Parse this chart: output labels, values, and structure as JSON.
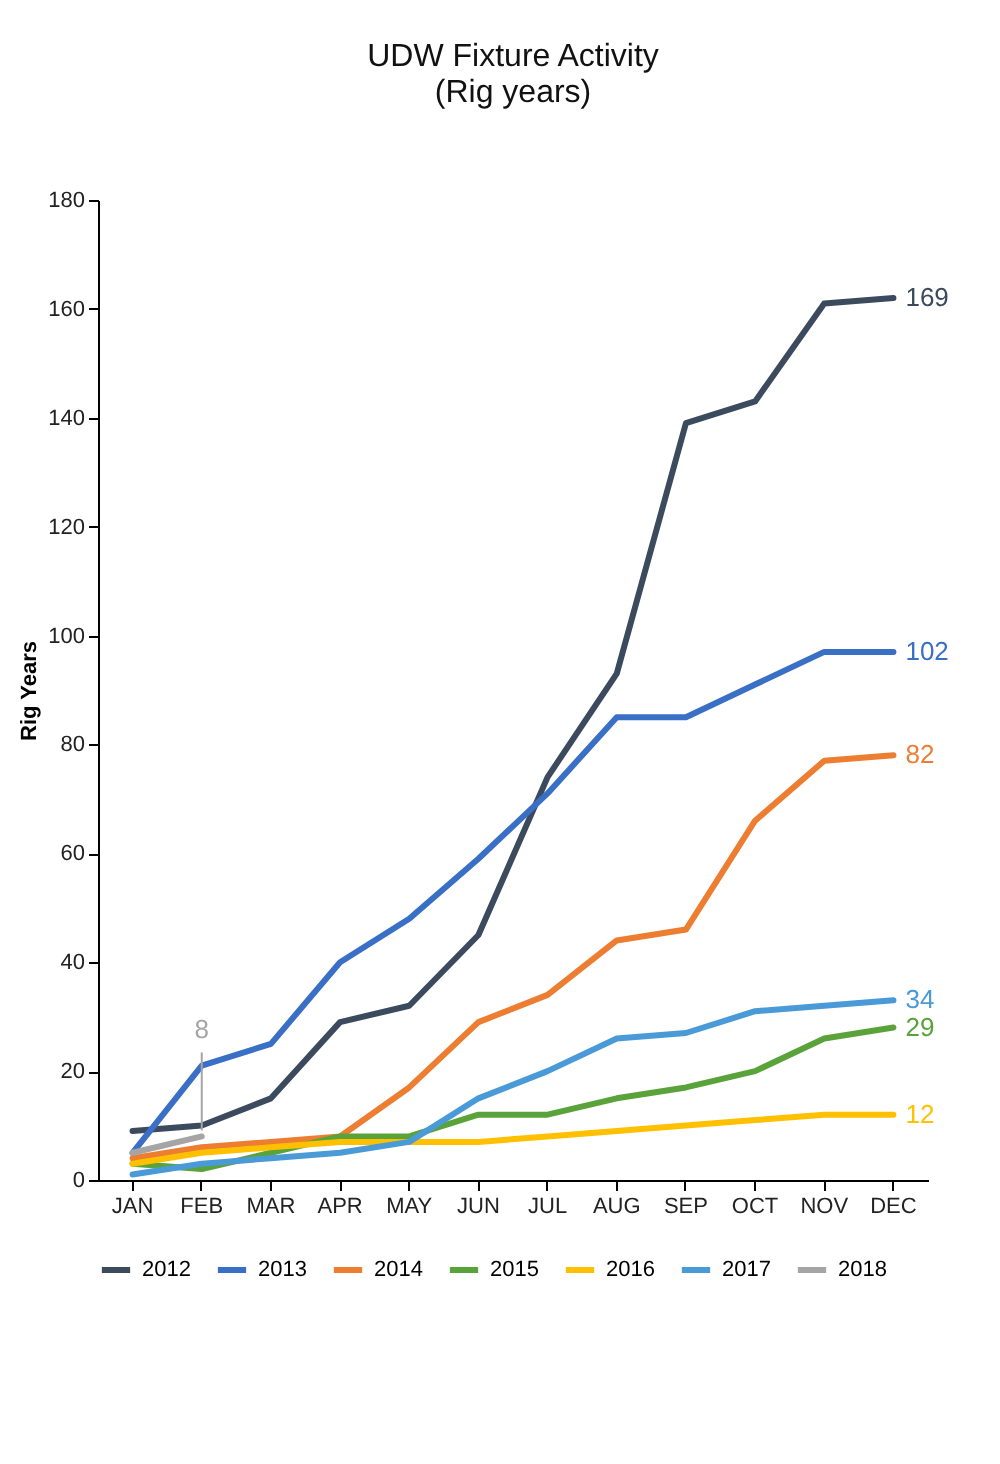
{
  "chart_data": {
    "type": "line",
    "title": [
      "UDW Fixture Activity",
      "(Rig years)"
    ],
    "ylabel": "Rig Years",
    "categories": [
      "JAN",
      "FEB",
      "MAR",
      "APR",
      "MAY",
      "JUN",
      "JUL",
      "AUG",
      "SEP",
      "OCT",
      "NOV",
      "DEC"
    ],
    "series": [
      {
        "name": "2012",
        "color": "#3c4a5e",
        "values": [
          9,
          10,
          15,
          29,
          32,
          45,
          74,
          93,
          139,
          143,
          161,
          162
        ]
      },
      {
        "name": "2013",
        "color": "#3a6fc6",
        "values": [
          5,
          21,
          25,
          40,
          48,
          59,
          71,
          85,
          85,
          91,
          97,
          97
        ]
      },
      {
        "name": "2014",
        "color": "#ed7d31",
        "values": [
          4,
          6,
          7,
          8,
          17,
          29,
          34,
          44,
          46,
          66,
          77,
          78
        ]
      },
      {
        "name": "2015",
        "color": "#5aa33a",
        "values": [
          3,
          2,
          5,
          8,
          8,
          12,
          12,
          15,
          17,
          20,
          26,
          28
        ]
      },
      {
        "name": "2016",
        "color": "#ffc000",
        "values": [
          3,
          5,
          6,
          7,
          7,
          7,
          8,
          9,
          10,
          11,
          12,
          12
        ]
      },
      {
        "name": "2017",
        "color": "#4a9ad8",
        "values": [
          1,
          3,
          4,
          5,
          7,
          15,
          20,
          26,
          27,
          31,
          32,
          33
        ]
      },
      {
        "name": "2018",
        "color": "#a5a5a5",
        "values": [
          5,
          8,
          null,
          null,
          null,
          null,
          null,
          null,
          null,
          null,
          null,
          null
        ]
      }
    ],
    "ylim": [
      0,
      180
    ],
    "yticks": [
      0,
      20,
      40,
      60,
      80,
      100,
      120,
      140,
      160,
      180
    ],
    "grid": false,
    "legend": "bottom",
    "marker": "none",
    "line_style": "solid",
    "annotations": [
      {
        "text": "169",
        "x": "DEC",
        "y": 162
      },
      {
        "text": "102",
        "x": "DEC",
        "y": 97
      },
      {
        "text": "82",
        "x": "DEC",
        "y": 78
      },
      {
        "text": "34",
        "x": "DEC",
        "y": 33
      },
      {
        "text": "29",
        "x": "DEC",
        "y": 28
      },
      {
        "text": "12",
        "x": "DEC",
        "y": 12
      },
      {
        "text": "8",
        "x": "FEB",
        "y": 8
      }
    ]
  }
}
